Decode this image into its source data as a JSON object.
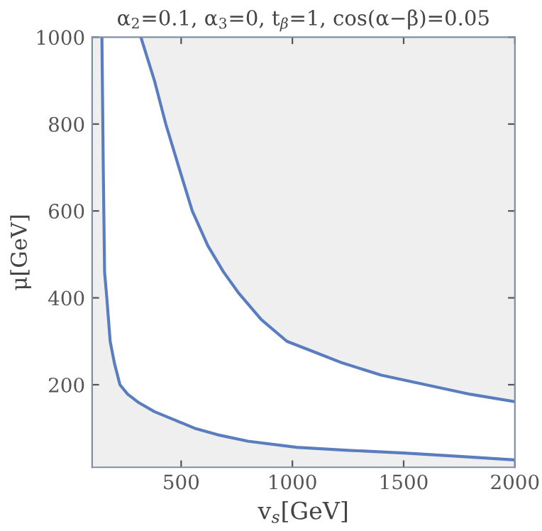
{
  "chart_data": {
    "type": "line",
    "title": "α$_{2}$=0.1, α$_{3}$=0, t$_{β}$=1, cos(α−β)=0.05",
    "xlabel": "v$_{s}$[GeV]",
    "ylabel": "μ[GeV]",
    "xlim": [
      100,
      2000
    ],
    "ylim": [
      10,
      1000
    ],
    "xticks": [
      500,
      1000,
      1500,
      2000
    ],
    "yticks": [
      200,
      400,
      600,
      800,
      1000
    ],
    "grid": false,
    "legend": false,
    "series": [
      {
        "color": "#5a7dbf",
        "x": [
          144,
          150,
          156,
          166,
          181,
          200,
          225,
          260,
          306,
          380,
          475,
          560,
          663,
          800,
          1019,
          1250,
          1500,
          1750,
          2000
        ],
        "values": [
          1000,
          700,
          459,
          400,
          300,
          250,
          200,
          178,
          160,
          138,
          118,
          100,
          85,
          70,
          56,
          49,
          43,
          35,
          27
        ]
      },
      {
        "color": "#5a7dbf",
        "x": [
          319,
          380,
          431,
          490,
          550,
          620,
          690,
          760,
          860,
          975,
          1100,
          1225,
          1400,
          1600,
          1800,
          2000
        ],
        "values": [
          1000,
          900,
          800,
          700,
          600,
          520,
          460,
          410,
          350,
          300,
          275,
          250,
          222,
          200,
          178,
          161
        ]
      }
    ]
  }
}
